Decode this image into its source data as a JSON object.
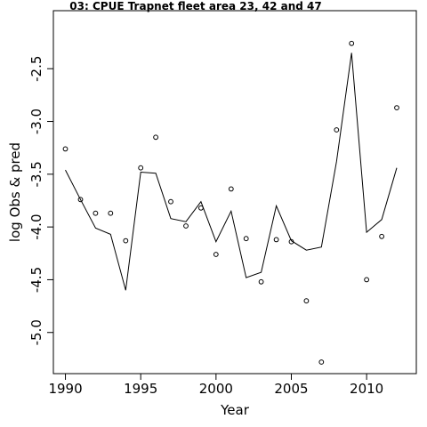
{
  "chart_data": {
    "type": "scatter",
    "title": "03: CPUE Trapnet fleet area 23, 42 and 47",
    "xlabel": "Year",
    "ylabel": "log Obs & pred",
    "xlim": [
      1989.2,
      2013.3
    ],
    "ylim": [
      -5.39,
      -1.95
    ],
    "x_ticks": [
      1990,
      1995,
      2000,
      2005,
      2010
    ],
    "x_tick_labels": [
      "1990",
      "1995",
      "2000",
      "2005",
      "2010"
    ],
    "y_ticks": [
      -5.0,
      -4.5,
      -4.0,
      -3.5,
      -3.0,
      -2.5
    ],
    "y_tick_labels": [
      "-5.0",
      "-4.5",
      "-4.0",
      "-3.5",
      "-3.0",
      "-2.5"
    ],
    "grid": false,
    "legend": "none",
    "series": [
      {
        "name": "",
        "kind": "points",
        "x": [
          1990,
          1991,
          1992,
          1993,
          1994,
          1995,
          1996,
          1997,
          1998,
          1999,
          2000,
          2001,
          2002,
          2003,
          2004,
          2005,
          2006,
          2007,
          2008,
          2009,
          2010,
          2011,
          2012
        ],
        "values": [
          -3.26,
          -3.74,
          -3.87,
          -3.87,
          -4.13,
          -3.44,
          -3.15,
          -3.76,
          -3.99,
          -3.82,
          -4.26,
          -3.64,
          -4.11,
          -4.52,
          -4.12,
          -4.14,
          -4.7,
          -5.28,
          -3.08,
          -2.26,
          -4.5,
          -4.09,
          -2.87
        ]
      },
      {
        "name": "",
        "kind": "line",
        "x": [
          1990,
          1991,
          1992,
          1993,
          1994,
          1995,
          1996,
          1997,
          1998,
          1999,
          2000,
          2001,
          2002,
          2003,
          2004,
          2005,
          2006,
          2007,
          2008,
          2009,
          2010,
          2011,
          2012
        ],
        "values": [
          -3.46,
          -3.74,
          -4.01,
          -4.07,
          -4.6,
          -3.48,
          -3.49,
          -3.92,
          -3.95,
          -3.76,
          -4.14,
          -3.85,
          -4.48,
          -4.43,
          -3.8,
          -4.13,
          -4.22,
          -4.19,
          -3.38,
          -2.35,
          -4.05,
          -3.93,
          -3.44
        ]
      }
    ]
  }
}
